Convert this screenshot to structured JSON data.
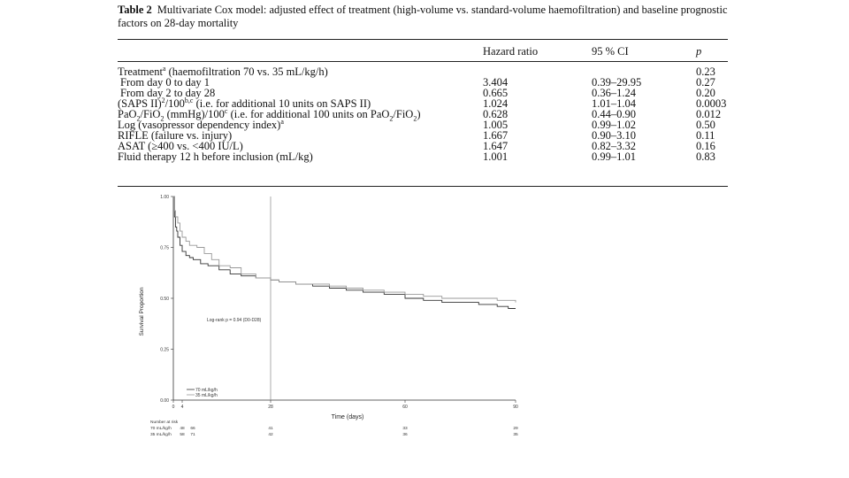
{
  "caption": {
    "label": "Table 2",
    "text": "Multivariate Cox model: adjusted effect of treatment (high-volume vs. standard-volume haemofiltration) and baseline prognostic factors on 28-day mortality"
  },
  "table": {
    "headers": [
      "",
      "Hazard ratio",
      "95 % CI",
      "p"
    ],
    "rows": [
      {
        "label": "Treatment",
        "sup": "a",
        "label_rest": " (haemofiltration 70 vs. 35 mL/kg/h)",
        "hr": "",
        "ci": "",
        "p": "0.23"
      },
      {
        "label": "From day 0 to day 1",
        "hr": "3.404",
        "ci": "0.39–29.95",
        "p": "0.27"
      },
      {
        "label": "From day 2 to day 28",
        "hr": "0.665",
        "ci": "0.36–1.24",
        "p": "0.20"
      },
      {
        "label": "(SAPS II)",
        "sup": "2",
        "label_mid": "/100",
        "sup2": "b,c",
        "label_rest": " (i.e. for additional 10 units on SAPS II)",
        "hr": "1.024",
        "ci": "1.01–1.04",
        "p": "0.0003"
      },
      {
        "label": "PaO",
        "sub": "2",
        "label_mid": "/FiO",
        "sub2": "2",
        "label_rest": " (mmHg)/100",
        "sup": "c",
        "label_tail": " (i.e. for additional 100 units on PaO",
        "sub3": "2",
        "label_tail2": "/FiO",
        "sub4": "2",
        "label_end": ")",
        "hr": "0.628",
        "ci": "0.44–0.90",
        "p": "0.012"
      },
      {
        "label": "Log (vasopressor dependency index)",
        "sup": "a",
        "hr": "1.005",
        "ci": "0.99–1.02",
        "p": "0.50"
      },
      {
        "label": "RIFLE (failure vs. injury)",
        "hr": "1.667",
        "ci": "0.90–3.10",
        "p": "0.11"
      },
      {
        "label": "ASAT (≥400 vs. <400 IU/L)",
        "hr": "1.647",
        "ci": "0.82–3.32",
        "p": "0.16"
      },
      {
        "label": "Fluid therapy 12 h before inclusion (mL/kg)",
        "hr": "1.001",
        "ci": "0.99–1.01",
        "p": "0.83"
      }
    ]
  },
  "chart_data": {
    "type": "line",
    "ylabel": "Survival Proportion",
    "xlabel": "Time (days)",
    "ylim": [
      0,
      1
    ],
    "y_ticks": [
      "0.00",
      "0.25",
      "0.50",
      "0.75",
      "1.00"
    ],
    "y_tick_values": [
      0,
      0.25,
      0.5,
      0.75,
      1
    ],
    "xlim": [
      0,
      90
    ],
    "x_ticks": [
      "0",
      "4",
      "28",
      "60",
      "90"
    ],
    "x_tick_values": [
      0,
      4,
      28,
      60,
      90
    ],
    "vline_x": 28,
    "annotation": "Log-rank p = 0.94 (D0-D28)",
    "legend": [
      "70 mL/kg/h",
      "35 mL/kg/h"
    ],
    "series": [
      {
        "name": "70 mL/kg/h",
        "color": "#333333",
        "x": [
          0,
          0.5,
          1,
          1.5,
          2,
          3,
          4,
          5,
          6,
          7,
          9,
          11,
          14,
          17,
          20,
          24,
          28,
          30,
          34,
          38,
          42,
          46,
          50,
          55,
          60,
          65,
          70,
          75,
          80,
          85,
          88,
          90
        ],
        "y": [
          1.0,
          0.9,
          0.85,
          0.83,
          0.8,
          0.76,
          0.73,
          0.71,
          0.7,
          0.69,
          0.67,
          0.66,
          0.64,
          0.62,
          0.61,
          0.6,
          0.59,
          0.58,
          0.57,
          0.56,
          0.55,
          0.54,
          0.53,
          0.52,
          0.5,
          0.49,
          0.48,
          0.48,
          0.47,
          0.46,
          0.45,
          0.45
        ]
      },
      {
        "name": "35 mL/kg/h",
        "color": "#999999",
        "x": [
          0,
          0.5,
          1,
          2,
          3,
          4,
          5,
          6,
          8,
          10,
          12,
          14,
          17,
          20,
          24,
          28,
          30,
          34,
          38,
          42,
          46,
          50,
          55,
          60,
          65,
          70,
          75,
          80,
          85,
          88,
          90
        ],
        "y": [
          1.0,
          0.93,
          0.9,
          0.87,
          0.83,
          0.8,
          0.78,
          0.76,
          0.75,
          0.72,
          0.69,
          0.66,
          0.65,
          0.62,
          0.6,
          0.59,
          0.58,
          0.57,
          0.57,
          0.56,
          0.55,
          0.54,
          0.53,
          0.52,
          0.51,
          0.5,
          0.5,
          0.5,
          0.49,
          0.49,
          0.48
        ]
      }
    ],
    "risk_table": {
      "title": "Number at risk",
      "rows": [
        {
          "label": "70 mL/kg/h",
          "values": [
            "66",
            "48",
            "41",
            "33",
            "29"
          ]
        },
        {
          "label": "35 mL/kg/h",
          "values": [
            "71",
            "58",
            "42",
            "36",
            "35"
          ]
        }
      ]
    }
  }
}
